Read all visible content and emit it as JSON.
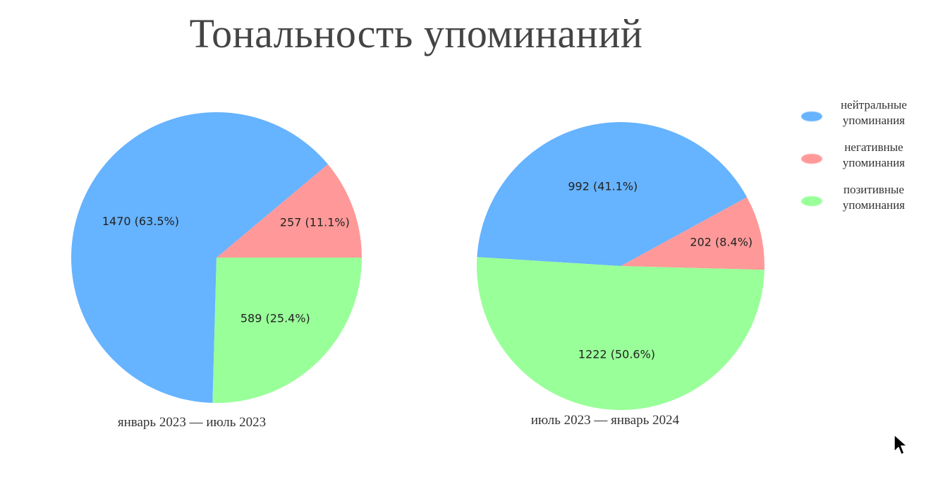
{
  "title": "Тональность упоминаний",
  "legend": [
    {
      "label_line1": "нейтральные",
      "label_line2": "упоминания",
      "color": "#66b3ff"
    },
    {
      "label_line1": "негативные",
      "label_line2": "упоминания",
      "color": "#ff9999"
    },
    {
      "label_line1": "позитивные",
      "label_line2": "упоминания",
      "color": "#99ff99"
    }
  ],
  "chart_data": [
    {
      "type": "pie",
      "caption": "январь 2023 — июль 2023",
      "slices": [
        {
          "name": "нейтральные упоминания",
          "value": 1470,
          "percent": 63.5,
          "label": "1470 (63.5%)",
          "color": "#66b3ff"
        },
        {
          "name": "негативные упоминания",
          "value": 257,
          "percent": 11.1,
          "label": "257 (11.1%)",
          "color": "#ff9999"
        },
        {
          "name": "позитивные упоминания",
          "value": 589,
          "percent": 25.4,
          "label": "589 (25.4%)",
          "color": "#99ff99"
        }
      ]
    },
    {
      "type": "pie",
      "caption": "июль 2023 — январь 2024",
      "slices": [
        {
          "name": "нейтральные упоминания",
          "value": 992,
          "percent": 41.1,
          "label": "992 (41.1%)",
          "color": "#66b3ff"
        },
        {
          "name": "негативные упоминания",
          "value": 202,
          "percent": 8.4,
          "label": "202 (8.4%)",
          "color": "#ff9999"
        },
        {
          "name": "позитивные упоминания",
          "value": 1222,
          "percent": 50.6,
          "label": "1222 (50.6%)",
          "color": "#99ff99"
        }
      ]
    }
  ]
}
